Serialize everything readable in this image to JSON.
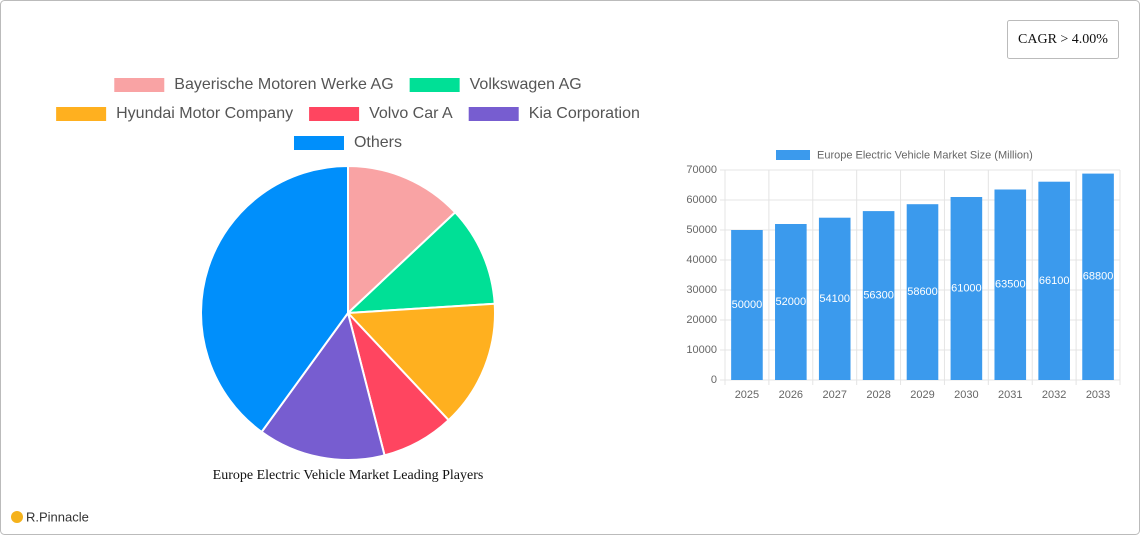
{
  "badge": "CAGR > 4.00%",
  "brand": "R.Pinnacle",
  "chart_data": [
    {
      "type": "pie",
      "title": "Europe Electric Vehicle Market Leading Players",
      "categories": [
        "Bayerische Motoren Werke AG",
        "Volkswagen AG",
        "Hyundai Motor Company",
        "Volvo Car A",
        "Kia Corporation",
        "Others"
      ],
      "values": [
        13,
        11,
        14,
        8,
        14,
        40
      ],
      "colors": [
        "#f9a3a4",
        "#00e096",
        "#ffb01f",
        "#ff4560",
        "#775dd0",
        "#008ffb"
      ],
      "legend": "top"
    },
    {
      "type": "bar",
      "categories": [
        "2025",
        "2026",
        "2027",
        "2028",
        "2029",
        "2030",
        "2031",
        "2032",
        "2033"
      ],
      "series": [
        {
          "name": "Europe Electric Vehicle Market Size (Million)",
          "color": "#3b9aed",
          "values": [
            50000,
            52000,
            54100,
            56300,
            58600,
            61000,
            63500,
            66100,
            68800
          ]
        }
      ],
      "ylim": [
        0,
        70000
      ],
      "yticks": [
        0,
        10000,
        20000,
        30000,
        40000,
        50000,
        60000,
        70000
      ],
      "grid": true,
      "legend": "top"
    }
  ]
}
